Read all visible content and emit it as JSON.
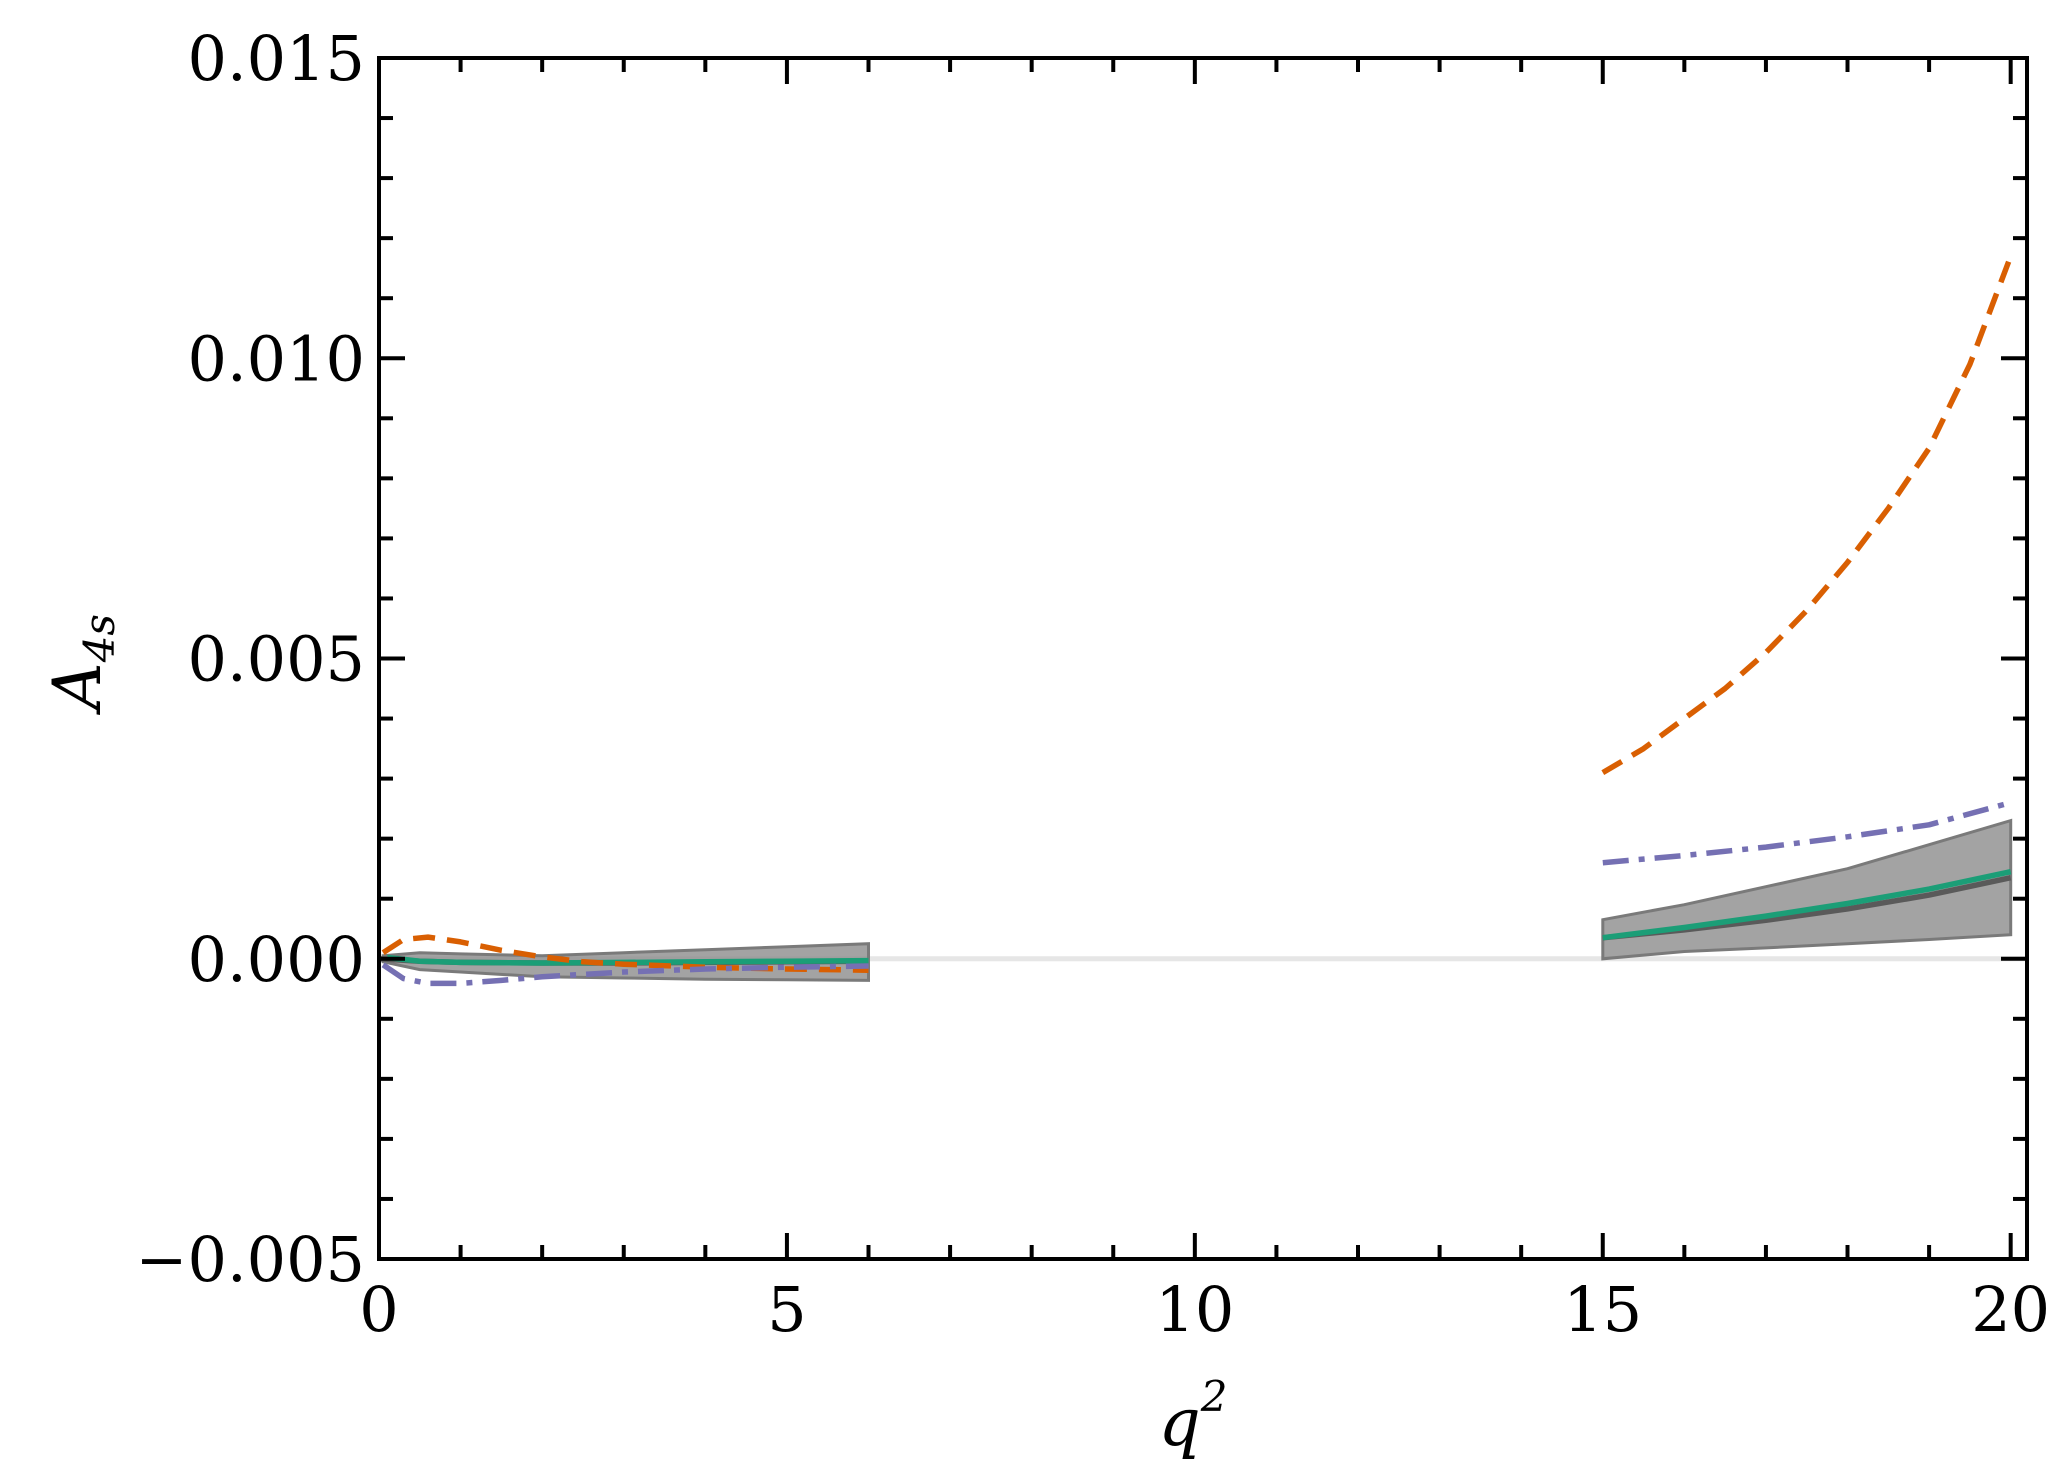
{
  "chart_data": {
    "type": "line",
    "title": "",
    "xlabel": "q",
    "xlabel_sup": "2",
    "ylabel": "A",
    "ylabel_sub": "4s",
    "xlim": [
      0,
      20.2
    ],
    "ylim": [
      -0.005,
      0.015
    ],
    "xticks": [
      0,
      5,
      10,
      15,
      20
    ],
    "xtick_labels": [
      "0",
      "5",
      "10",
      "15",
      "20"
    ],
    "yticks": [
      -0.005,
      0.0,
      0.005,
      0.01,
      0.015
    ],
    "ytick_labels": [
      "−0.005",
      "0.000",
      "0.005",
      "0.010",
      "0.015"
    ],
    "grid": false,
    "zero_line": true,
    "colors": {
      "band": "#8c8c8c",
      "central": "#5a5a5a",
      "green": "#1b9e77",
      "orange": "#d95f02",
      "purple": "#7570b3",
      "zero": "#e6e6e6"
    },
    "bands": [
      {
        "x": [
          0.05,
          0.5,
          1,
          2,
          3,
          4,
          5,
          6
        ],
        "lower": [
          -5e-05,
          -0.00018,
          -0.00022,
          -0.0003,
          -0.00032,
          -0.00034,
          -0.00035,
          -0.00036
        ],
        "upper": [
          5e-05,
          0.0001,
          8e-05,
          5e-05,
          0.0001,
          0.00015,
          0.0002,
          0.00025
        ]
      },
      {
        "x": [
          15,
          16,
          17,
          18,
          19,
          20
        ],
        "lower": [
          0.0,
          0.00012,
          0.00018,
          0.00025,
          0.00032,
          0.0004
        ],
        "upper": [
          0.00065,
          0.0009,
          0.0012,
          0.0015,
          0.0019,
          0.0023
        ]
      }
    ],
    "series": [
      {
        "color_key": "central",
        "style": "solid",
        "segments": [
          {
            "x": [
              0,
              0.5,
              1,
              2,
              3,
              4,
              5,
              6
            ],
            "y": [
              0.0,
              -4e-05,
              -6e-05,
              -7e-05,
              -7e-05,
              -6e-05,
              -5e-05,
              -4e-05
            ]
          },
          {
            "x": [
              15,
              16,
              17,
              18,
              19,
              20
            ],
            "y": [
              0.00035,
              0.00048,
              0.00064,
              0.00083,
              0.00106,
              0.00135
            ]
          }
        ]
      },
      {
        "color_key": "green",
        "style": "solid",
        "segments": [
          {
            "x": [
              0.1,
              0.5,
              1,
              2,
              3,
              4,
              5,
              6
            ],
            "y": [
              2e-05,
              -4e-05,
              -6e-05,
              -7e-05,
              -6e-05,
              -5e-05,
              -4e-05,
              -3e-05
            ]
          },
          {
            "x": [
              15,
              16,
              17,
              18,
              19,
              20
            ],
            "y": [
              0.00035,
              0.00052,
              0.00071,
              0.00092,
              0.00116,
              0.00145
            ]
          }
        ]
      },
      {
        "color_key": "orange",
        "style": "dashed",
        "segments": [
          {
            "x": [
              0.05,
              0.3,
              0.6,
              1.0,
              1.5,
              2.0,
              2.5,
              3,
              4,
              5,
              6
            ],
            "y": [
              0.0001,
              0.00032,
              0.00036,
              0.00028,
              0.00014,
              3e-05,
              -5e-05,
              -9e-05,
              -0.00014,
              -0.00017,
              -0.00019
            ]
          },
          {
            "x": [
              15,
              15.5,
              16,
              16.5,
              17,
              17.5,
              18,
              18.5,
              19,
              19.5,
              20
            ],
            "y": [
              0.0031,
              0.0035,
              0.004,
              0.0045,
              0.0051,
              0.0058,
              0.0066,
              0.0075,
              0.0085,
              0.0099,
              0.0117
            ]
          }
        ]
      },
      {
        "color_key": "purple",
        "style": "dashdot",
        "segments": [
          {
            "x": [
              0.05,
              0.3,
              0.6,
              1.0,
              1.5,
              2,
              3,
              4,
              5,
              6
            ],
            "y": [
              -0.0001,
              -0.00033,
              -0.00041,
              -0.00041,
              -0.00036,
              -0.0003,
              -0.00022,
              -0.00017,
              -0.00014,
              -0.00012
            ]
          },
          {
            "x": [
              15,
              16,
              17,
              18,
              19,
              20
            ],
            "y": [
              0.0016,
              0.00172,
              0.00186,
              0.00203,
              0.00223,
              0.0026
            ]
          }
        ]
      }
    ]
  }
}
